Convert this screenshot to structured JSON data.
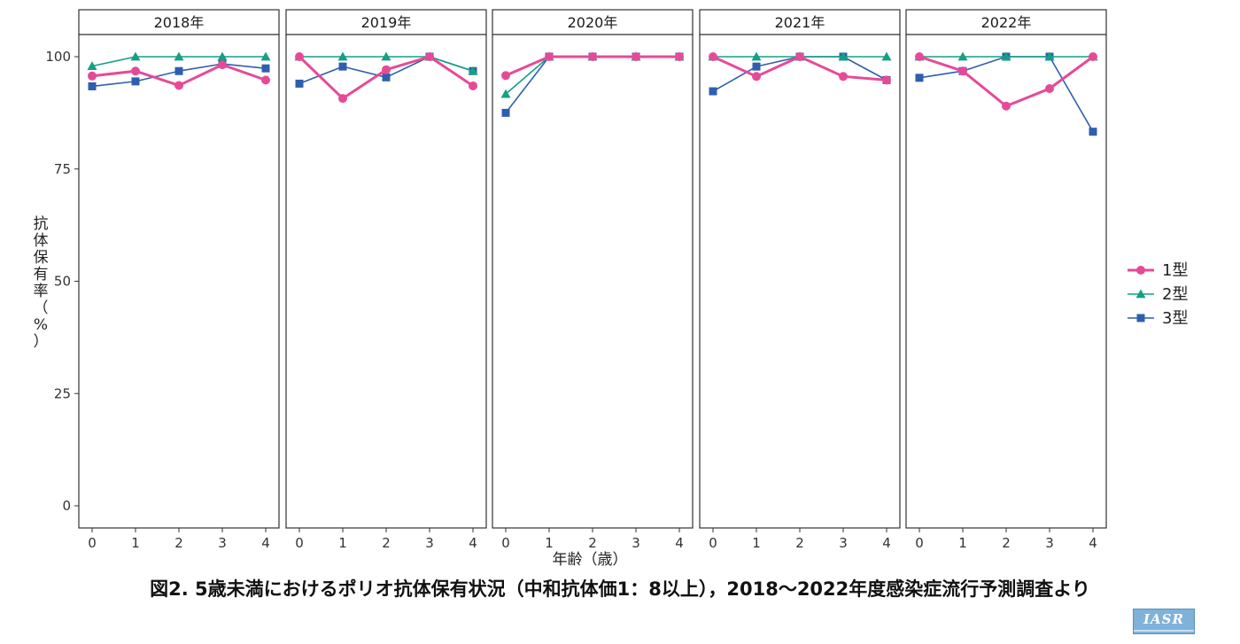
{
  "chart_data": {
    "type": "line",
    "title": "",
    "caption": "図2. 5歳未満におけるポリオ抗体保有状況（中和抗体価1：8以上），2018～2022年度感染症流行予測調査より",
    "xlabel": "年齢（歳）",
    "ylabel": "抗体保有率（%）",
    "ylabel_chars": [
      "抗",
      "体",
      "保",
      "有",
      "率",
      "（",
      "%",
      "）"
    ],
    "ylim": [
      0,
      105
    ],
    "yticks": [
      0,
      25,
      50,
      75,
      100
    ],
    "x": [
      0,
      1,
      2,
      3,
      4
    ],
    "grid": false,
    "legend": "right",
    "series_styles": [
      {
        "name": "1型",
        "color": "#e64a97",
        "marker": "circle"
      },
      {
        "name": "2型",
        "color": "#14a085",
        "marker": "triangle"
      },
      {
        "name": "3型",
        "color": "#2e5fae",
        "marker": "square"
      }
    ],
    "panels": [
      {
        "label": "2018年",
        "series": [
          {
            "name": "1型",
            "values": [
              95.7,
              96.8,
              93.6,
              98.2,
              94.8
            ]
          },
          {
            "name": "2型",
            "values": [
              97.9,
              100,
              100,
              100,
              100
            ]
          },
          {
            "name": "3型",
            "values": [
              93.4,
              94.5,
              96.8,
              98.4,
              97.4
            ]
          }
        ]
      },
      {
        "label": "2019年",
        "series": [
          {
            "name": "1型",
            "values": [
              100,
              90.7,
              97.1,
              100,
              93.5
            ]
          },
          {
            "name": "2型",
            "values": [
              100,
              100,
              100,
              100,
              96.8
            ]
          },
          {
            "name": "3型",
            "values": [
              94.0,
              97.8,
              95.4,
              100,
              96.8
            ]
          }
        ]
      },
      {
        "label": "2020年",
        "series": [
          {
            "name": "1型",
            "values": [
              95.8,
              100,
              100,
              100,
              100
            ]
          },
          {
            "name": "2型",
            "values": [
              91.7,
              100,
              100,
              100,
              100
            ]
          },
          {
            "name": "3型",
            "values": [
              87.5,
              100,
              100,
              100,
              100
            ]
          }
        ]
      },
      {
        "label": "2021年",
        "series": [
          {
            "name": "1型",
            "values": [
              100,
              95.6,
              100,
              95.6,
              94.8
            ]
          },
          {
            "name": "2型",
            "values": [
              100,
              100,
              100,
              100,
              100
            ]
          },
          {
            "name": "3型",
            "values": [
              92.3,
              97.8,
              100,
              100,
              94.8
            ]
          }
        ]
      },
      {
        "label": "2022年",
        "series": [
          {
            "name": "1型",
            "values": [
              100,
              96.8,
              89.0,
              92.9,
              100
            ]
          },
          {
            "name": "2型",
            "values": [
              100,
              100,
              100,
              100,
              100
            ]
          },
          {
            "name": "3型",
            "values": [
              95.3,
              96.8,
              100,
              100,
              83.3
            ]
          }
        ]
      }
    ]
  },
  "logo": {
    "text": "IASR"
  }
}
